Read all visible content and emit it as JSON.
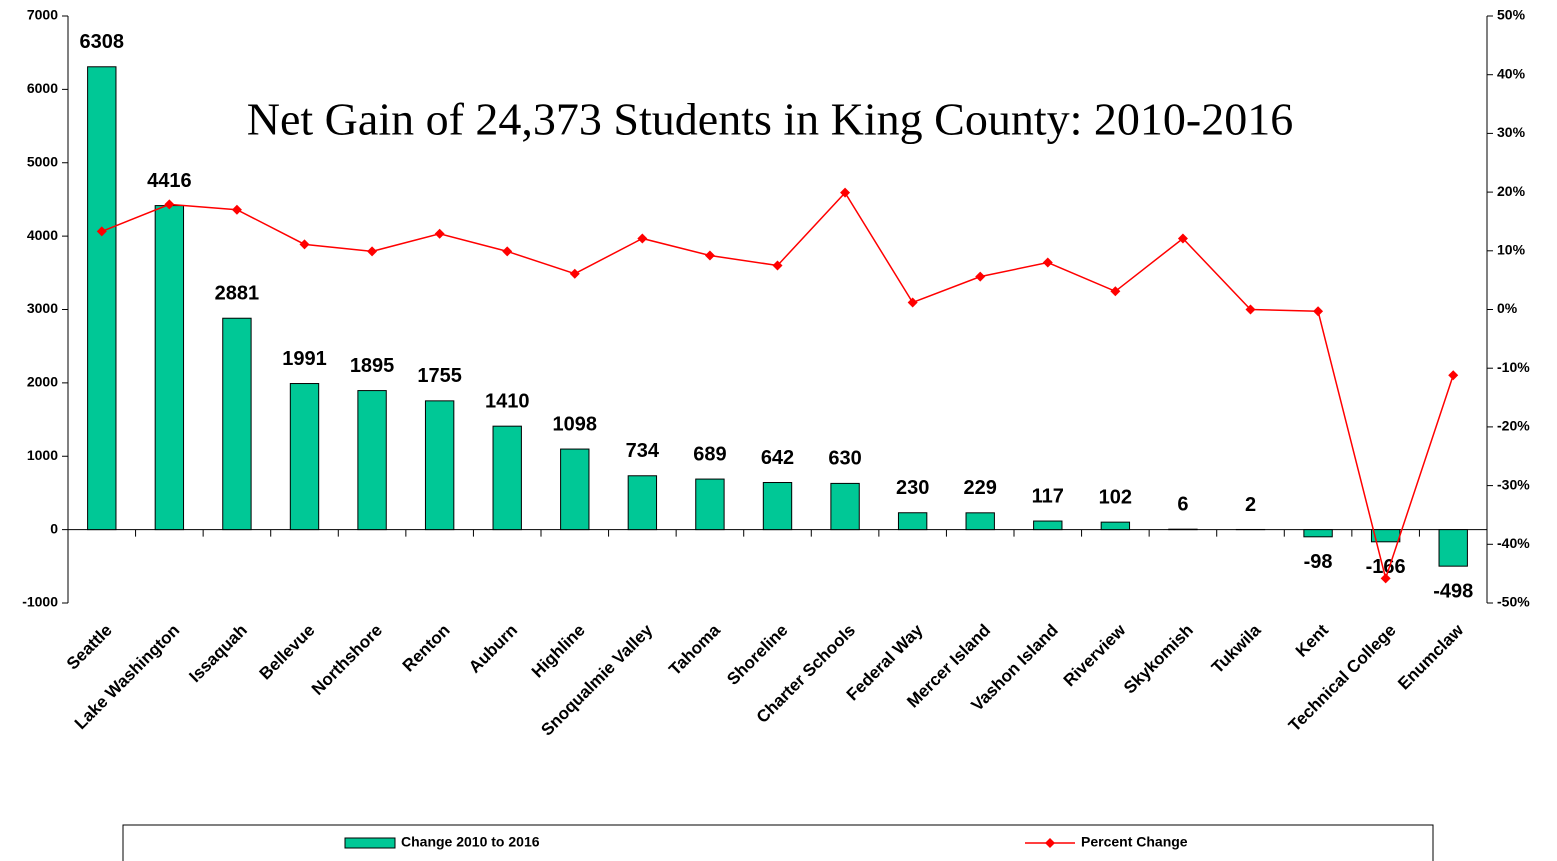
{
  "chart_data": {
    "type": "bar",
    "title": "Net Gain of 24,373 Students in King County: 2010-2016",
    "categories": [
      "Seattle",
      "Lake Washington",
      "Issaquah",
      "Bellevue",
      "Northshore",
      "Renton",
      "Auburn",
      "Highline",
      "Snoqualmie Valley",
      "Tahoma",
      "Shoreline",
      "Charter Schools",
      "Federal Way",
      "Mercer Island",
      "Vashon Island",
      "Riverview",
      "Skykomish",
      "Tukwila",
      "Kent",
      "Technical College",
      "Enumclaw"
    ],
    "series": [
      {
        "name": "Change 2010 to 2016",
        "type": "bar",
        "color": "#00c896",
        "values": [
          6308,
          4416,
          2881,
          1991,
          1895,
          1755,
          1410,
          1098,
          734,
          689,
          642,
          630,
          230,
          229,
          117,
          102,
          6,
          2,
          -98,
          -166,
          -498
        ]
      },
      {
        "name": "Percent Change",
        "type": "line",
        "axis": "y2",
        "color": "#ff0000",
        "values": [
          13.3,
          17.9,
          17.0,
          11.1,
          9.9,
          12.9,
          9.9,
          6.1,
          12.1,
          9.2,
          7.5,
          19.9,
          1.2,
          5.6,
          8.0,
          3.1,
          12.1,
          0,
          -0.3,
          -45.8,
          -11.2
        ]
      }
    ],
    "ylim": [
      -1000,
      7000
    ],
    "yticks": [
      -1000,
      0,
      1000,
      2000,
      3000,
      4000,
      5000,
      6000,
      7000
    ],
    "y2lim": [
      -50,
      50
    ],
    "y2ticks": [
      {
        "value": -50,
        "label": "-50%"
      },
      {
        "value": -40,
        "label": "-40%"
      },
      {
        "value": -30,
        "label": "-30%"
      },
      {
        "value": -20,
        "label": "-20%"
      },
      {
        "value": -10,
        "label": "-10%"
      },
      {
        "value": 0,
        "label": "0%"
      },
      {
        "value": 10,
        "label": "10%"
      },
      {
        "value": 20,
        "label": "20%"
      },
      {
        "value": 30,
        "label": "30%"
      },
      {
        "value": 40,
        "label": "40%"
      },
      {
        "value": 50,
        "label": "50%"
      }
    ],
    "legend": "bottom"
  }
}
